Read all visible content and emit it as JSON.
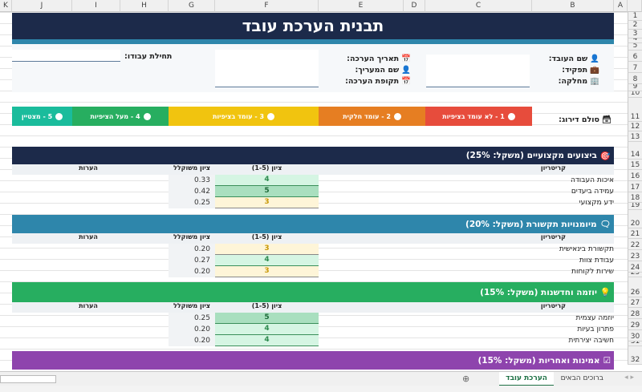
{
  "columns": [
    "K",
    "J",
    "I",
    "H",
    "G",
    "F",
    "E",
    "D",
    "C",
    "B",
    "A"
  ],
  "rows": [
    "1",
    "2",
    "3",
    "4",
    "5",
    "6",
    "7",
    "8",
    "9",
    "10",
    "11",
    "12",
    "13",
    "14",
    "15",
    "16",
    "17",
    "18",
    "19",
    "20",
    "21",
    "22",
    "23",
    "24",
    "25",
    "26",
    "27",
    "28",
    "29",
    "30",
    "31",
    "32"
  ],
  "title": "תבנית הערכת עובד",
  "info": {
    "employee_name": "שם העובד:",
    "role": "תפקיד:",
    "department": "מחלקה:",
    "eval_date": "תאריך הערכה:",
    "evaluator": "שם המעריך:",
    "eval_period": "תקופת הערכה:",
    "start_date": ":תחילת עבודו"
  },
  "rating_scale": {
    "label": "סולם דירוג:",
    "levels": [
      {
        "label": "1 - לא עומד בציפיות",
        "color": "#e74c3c"
      },
      {
        "label": "2 - עומד חלקית",
        "color": "#e67e22"
      },
      {
        "label": "3 - עומד בציפיות",
        "color": "#f1c40f"
      },
      {
        "label": "4 - מעל הציפיות",
        "color": "#27ae60"
      },
      {
        "label": "5 - מצטיין",
        "color": "#1abc9c"
      }
    ]
  },
  "table_headers": {
    "criterion": "קריטריון",
    "score": "ציון (1-5)",
    "weighted": "ציון משוקלל",
    "notes": "הערות"
  },
  "sections": [
    {
      "title": "ביצועים מקצועיים (משקל: 25%)",
      "icon": "target-icon",
      "color": "#1c2a4a",
      "items": [
        {
          "criterion": "איכות העבודה",
          "score": "4",
          "weighted": "0.33"
        },
        {
          "criterion": "עמידה ביעדים",
          "score": "5",
          "weighted": "0.42"
        },
        {
          "criterion": "ידע מקצועי",
          "score": "3",
          "weighted": "0.25"
        }
      ]
    },
    {
      "title": "מיומנויות תקשורת (משקל: 20%)",
      "icon": "speech-bubble-icon",
      "color": "#2e86ab",
      "items": [
        {
          "criterion": "תקשורת בינאישית",
          "score": "3",
          "weighted": "0.20"
        },
        {
          "criterion": "עבודת צוות",
          "score": "4",
          "weighted": "0.27"
        },
        {
          "criterion": "שירות לקוחות",
          "score": "3",
          "weighted": "0.20"
        }
      ]
    },
    {
      "title": "יוזמה וחדשנות (משקל: 15%)",
      "icon": "lightbulb-icon",
      "color": "#27ae60",
      "items": [
        {
          "criterion": "יוזמה עצמית",
          "score": "5",
          "weighted": "0.25"
        },
        {
          "criterion": "פתרון בעיות",
          "score": "4",
          "weighted": "0.20"
        },
        {
          "criterion": "חשיבה יצירתית",
          "score": "4",
          "weighted": "0.20"
        }
      ]
    },
    {
      "title": "אמינות ואחריות (משקל: 15%)",
      "icon": "checkbox-icon",
      "color": "#8e44ad",
      "items": []
    }
  ],
  "sheet_tabs": [
    {
      "label": "הערכת עובד",
      "active": true
    },
    {
      "label": "ברוכים הבאים",
      "active": false
    }
  ]
}
